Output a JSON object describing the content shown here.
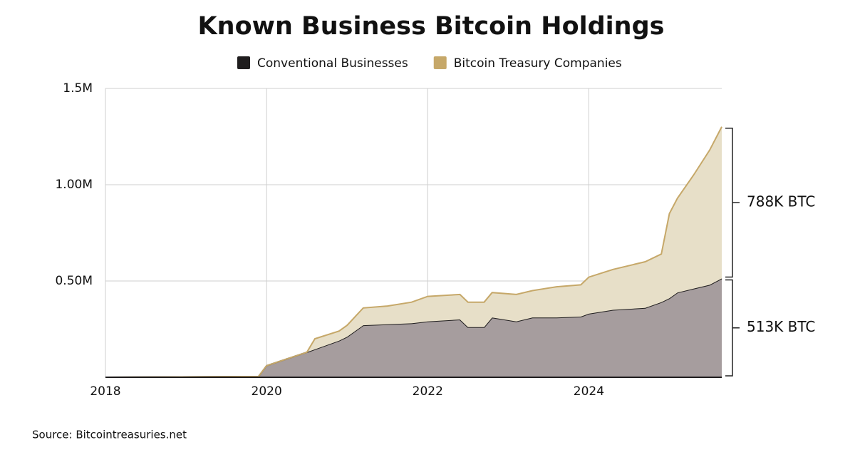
{
  "chart_data": {
    "type": "stacked-area",
    "title": "Known Business Bitcoin Holdings",
    "source": "Source: Bitcointreasuries.net",
    "x": [
      2018,
      2019.9,
      2020.0,
      2020.5,
      2020.6,
      2020.9,
      2021.0,
      2021.2,
      2021.5,
      2021.8,
      2022.0,
      2022.4,
      2022.5,
      2022.7,
      2022.8,
      2023.1,
      2023.3,
      2023.6,
      2023.9,
      2024.0,
      2024.3,
      2024.7,
      2024.9,
      2025.0,
      2025.1,
      2025.3,
      2025.5,
      2025.65
    ],
    "series": [
      {
        "name": "Conventional Businesses",
        "color": "#1f1d1e",
        "fill": "#a69d9e",
        "values": [
          0,
          0.004,
          0.06,
          0.13,
          0.145,
          0.19,
          0.21,
          0.27,
          0.275,
          0.28,
          0.29,
          0.3,
          0.26,
          0.26,
          0.31,
          0.29,
          0.31,
          0.31,
          0.315,
          0.33,
          0.35,
          0.36,
          0.39,
          0.41,
          0.44,
          0.46,
          0.48,
          0.513
        ]
      },
      {
        "name": "Bitcoin Treasury Companies",
        "color": "#c6a869",
        "fill": "#e7dfc8",
        "values": [
          0,
          0,
          0,
          0,
          0.055,
          0.05,
          0.06,
          0.09,
          0.095,
          0.11,
          0.13,
          0.13,
          0.13,
          0.13,
          0.13,
          0.14,
          0.14,
          0.16,
          0.165,
          0.19,
          0.21,
          0.24,
          0.25,
          0.44,
          0.49,
          0.59,
          0.7,
          0.788
        ]
      }
    ],
    "annotations": [
      "788K BTC",
      "513K BTC"
    ],
    "xlim": [
      2018,
      2025.65
    ],
    "xticks": [
      2018,
      2020,
      2022,
      2024
    ],
    "ylim": [
      0,
      1.5
    ],
    "yticks": [
      {
        "value": 0.5,
        "label": "0.50M"
      },
      {
        "value": 1.0,
        "label": "1.00M"
      },
      {
        "value": 1.5,
        "label": "1.5M"
      }
    ],
    "grid": true
  }
}
